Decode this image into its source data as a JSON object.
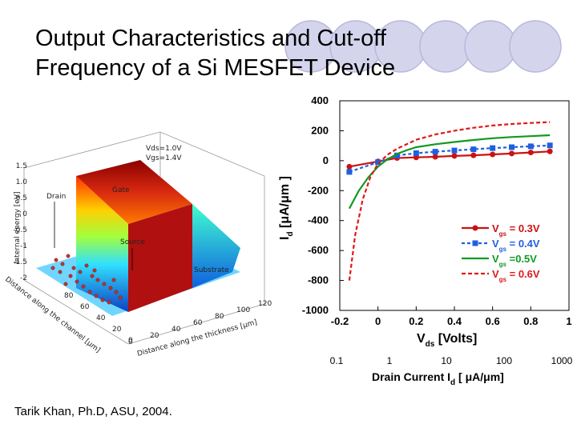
{
  "slide": {
    "title_line1": "Output Characteristics and Cut-off",
    "title_line2": "Frequency of a Si MESFET Device",
    "footer": "Tarik Khan, Ph.D, ASU, 2004."
  },
  "colors": {
    "ring_fill": "#d4d4ec",
    "ring_stroke": "#b8b8dc",
    "vgs_03": "#cc1111",
    "vgs_04": "#1f5fe0",
    "vgs_05": "#119922",
    "vgs_06": "#e01818"
  },
  "surface_figure": {
    "z_label": "Internal energy [eV]",
    "z_ticks": [
      "1.5",
      "1.0",
      "0.5",
      "0",
      "-0.5",
      "-1",
      "-1.5",
      "-2"
    ],
    "x_label": "Distance along the channel [μm]",
    "x_ticks": [
      "80",
      "60",
      "40",
      "20",
      "0"
    ],
    "y_label": "Distance along the thickness [μm]",
    "y_ticks": [
      "0",
      "20",
      "40",
      "60",
      "80",
      "100",
      "120"
    ],
    "annotations": {
      "drain": "Drain",
      "gate": "Gate",
      "source": "Source",
      "substrate": "Substrate",
      "bias1": "Vds=1.0V",
      "bias2": "Vgs=1.4V"
    }
  },
  "chart_data": {
    "type": "line",
    "xlabel_main": "V",
    "xlabel_sub": "ds",
    "xlabel_tail": " [Volts]",
    "ylabel_main": "I",
    "ylabel_sub": "d",
    "ylabel_tail": " [μA/μm ]",
    "xlim": [
      -0.2,
      1.0
    ],
    "ylim": [
      -1000,
      400
    ],
    "x_ticks": [
      "-0.2",
      "0",
      "0.2",
      "0.4",
      "0.6",
      "0.8",
      "1"
    ],
    "y_ticks": [
      "400",
      "200",
      "0",
      "-200",
      "-400",
      "-600",
      "-800",
      "-1000"
    ],
    "series": [
      {
        "name": "V",
        "sub": "gs",
        "suffix": " = 0.3V",
        "color": "#cc1111",
        "dash": "",
        "marker": "circle",
        "x": [
          -0.15,
          0,
          0.1,
          0.2,
          0.3,
          0.4,
          0.5,
          0.6,
          0.7,
          0.8,
          0.9
        ],
        "y": [
          -40,
          -5,
          18,
          22,
          26,
          32,
          36,
          42,
          48,
          55,
          62
        ]
      },
      {
        "name": "V",
        "sub": "gs",
        "suffix": " = 0.4V",
        "color": "#1f5fe0",
        "dash": "4,3",
        "marker": "square",
        "x": [
          -0.15,
          0,
          0.1,
          0.2,
          0.3,
          0.4,
          0.5,
          0.6,
          0.7,
          0.8,
          0.9
        ],
        "y": [
          -75,
          -10,
          35,
          50,
          60,
          68,
          76,
          84,
          90,
          96,
          102
        ]
      },
      {
        "name": "V",
        "sub": "gs",
        "suffix": " =0.5V",
        "color": "#119922",
        "dash": "",
        "marker": "none",
        "x": [
          -0.15,
          -0.1,
          -0.05,
          0,
          0.05,
          0.1,
          0.15,
          0.2,
          0.3,
          0.4,
          0.5,
          0.6,
          0.7,
          0.8,
          0.9
        ],
        "y": [
          -320,
          -200,
          -110,
          -40,
          10,
          45,
          70,
          90,
          110,
          125,
          138,
          150,
          158,
          164,
          170
        ]
      },
      {
        "name": "V",
        "sub": "gs",
        "suffix": " = 0.6V",
        "color": "#e01818",
        "dash": "5,3",
        "marker": "none",
        "x": [
          -0.15,
          -0.12,
          -0.08,
          -0.04,
          0,
          0.05,
          0.1,
          0.15,
          0.2,
          0.3,
          0.4,
          0.5,
          0.6,
          0.7,
          0.8,
          0.9
        ],
        "y": [
          -800,
          -500,
          -260,
          -110,
          -20,
          40,
          80,
          110,
          140,
          175,
          200,
          220,
          235,
          245,
          252,
          258
        ]
      }
    ],
    "secondary_axis": {
      "label_main": "Drain Current I",
      "label_sub": "d",
      "label_tail": " [ μA/μm]",
      "ticks": [
        "0.1",
        "1",
        "10",
        "100",
        "1000"
      ]
    }
  }
}
